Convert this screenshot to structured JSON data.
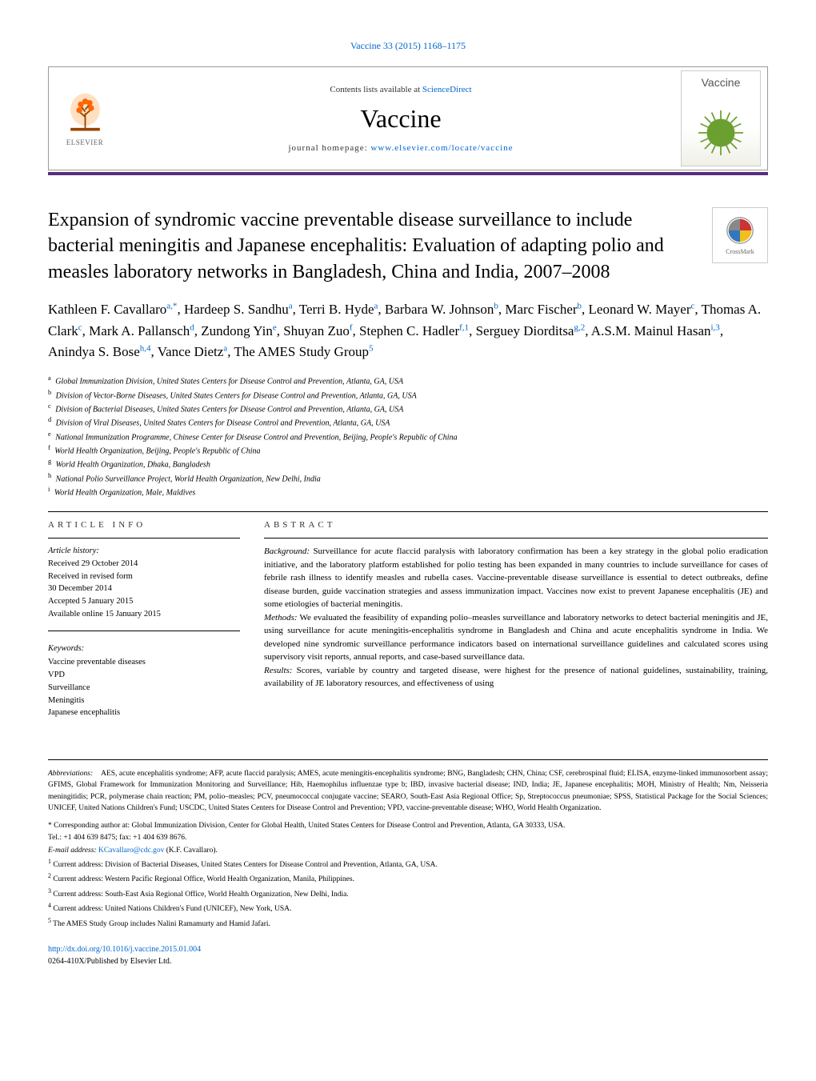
{
  "journal_ref": "Vaccine 33 (2015) 1168–1175",
  "header": {
    "contents_prefix": "Contents lists available at ",
    "contents_link": "ScienceDirect",
    "journal_name": "Vaccine",
    "homepage_prefix": "journal homepage: ",
    "homepage_url": "www.elsevier.com/locate/vaccine",
    "elsevier_label": "ELSEVIER",
    "logo_label": "Vaccine"
  },
  "crossmark_label": "CrossMark",
  "title": "Expansion of syndromic vaccine preventable disease surveillance to include bacterial meningitis and Japanese encephalitis: Evaluation of adapting polio and measles laboratory networks in Bangladesh, China and India, 2007–2008",
  "authors_html_parts": [
    {
      "name": "Kathleen F. Cavallaro",
      "sup": "a,*"
    },
    {
      "name": "Hardeep S. Sandhu",
      "sup": "a"
    },
    {
      "name": "Terri B. Hyde",
      "sup": "a"
    },
    {
      "name": "Barbara W. Johnson",
      "sup": "b"
    },
    {
      "name": "Marc Fischer",
      "sup": "b"
    },
    {
      "name": "Leonard W. Mayer",
      "sup": "c"
    },
    {
      "name": "Thomas A. Clark",
      "sup": "c"
    },
    {
      "name": "Mark A. Pallansch",
      "sup": "d"
    },
    {
      "name": "Zundong Yin",
      "sup": "e"
    },
    {
      "name": "Shuyan Zuo",
      "sup": "f"
    },
    {
      "name": "Stephen C. Hadler",
      "sup": "f,1"
    },
    {
      "name": "Serguey Diorditsa",
      "sup": "g,2"
    },
    {
      "name": "A.S.M. Mainul Hasan",
      "sup": "i,3"
    },
    {
      "name": "Anindya S. Bose",
      "sup": "h,4"
    },
    {
      "name": "Vance Dietz",
      "sup": "a"
    },
    {
      "name": "The AMES Study Group",
      "sup": "5"
    }
  ],
  "affiliations": [
    {
      "sup": "a",
      "text": "Global Immunization Division, United States Centers for Disease Control and Prevention, Atlanta, GA, USA"
    },
    {
      "sup": "b",
      "text": "Division of Vector-Borne Diseases, United States Centers for Disease Control and Prevention, Atlanta, GA, USA"
    },
    {
      "sup": "c",
      "text": "Division of Bacterial Diseases, United States Centers for Disease Control and Prevention, Atlanta, GA, USA"
    },
    {
      "sup": "d",
      "text": "Division of Viral Diseases, United States Centers for Disease Control and Prevention, Atlanta, GA, USA"
    },
    {
      "sup": "e",
      "text": "National Immunization Programme, Chinese Center for Disease Control and Prevention, Beijing, People's Republic of China"
    },
    {
      "sup": "f",
      "text": "World Health Organization, Beijing, People's Republic of China"
    },
    {
      "sup": "g",
      "text": "World Health Organization, Dhaka, Bangladesh"
    },
    {
      "sup": "h",
      "text": "National Polio Surveillance Project, World Health Organization, New Delhi, India"
    },
    {
      "sup": "i",
      "text": "World Health Organization, Male, Maldives"
    }
  ],
  "article_info": {
    "heading": "article info",
    "history_label": "Article history:",
    "history_lines": [
      "Received 29 October 2014",
      "Received in revised form",
      "30 December 2014",
      "Accepted 5 January 2015",
      "Available online 15 January 2015"
    ],
    "keywords_label": "Keywords:",
    "keywords": [
      "Vaccine preventable diseases",
      "VPD",
      "Surveillance",
      "Meningitis",
      "Japanese encephalitis"
    ]
  },
  "abstract": {
    "heading": "abstract",
    "paragraphs": [
      {
        "label": "Background:",
        "text": "Surveillance for acute flaccid paralysis with laboratory confirmation has been a key strategy in the global polio eradication initiative, and the laboratory platform established for polio testing has been expanded in many countries to include surveillance for cases of febrile rash illness to identify measles and rubella cases. Vaccine-preventable disease surveillance is essential to detect outbreaks, define disease burden, guide vaccination strategies and assess immunization impact. Vaccines now exist to prevent Japanese encephalitis (JE) and some etiologies of bacterial meningitis."
      },
      {
        "label": "Methods:",
        "text": "We evaluated the feasibility of expanding polio–measles surveillance and laboratory networks to detect bacterial meningitis and JE, using surveillance for acute meningitis-encephalitis syndrome in Bangladesh and China and acute encephalitis syndrome in India. We developed nine syndromic surveillance performance indicators based on international surveillance guidelines and calculated scores using supervisory visit reports, annual reports, and case-based surveillance data."
      },
      {
        "label": "Results:",
        "text": "Scores, variable by country and targeted disease, were highest for the presence of national guidelines, sustainability, training, availability of JE laboratory resources, and effectiveness of using"
      }
    ]
  },
  "abbreviations": {
    "label": "Abbreviations:",
    "text": "AES, acute encephalitis syndrome; AFP, acute flaccid paralysis; AMES, acute meningitis-encephalitis syndrome; BNG, Bangladesh; CHN, China; CSF, cerebrospinal fluid; ELISA, enzyme-linked immunosorbent assay; GFIMS, Global Framework for Immunization Monitoring and Surveillance; Hib, Haemophilus influenzae type b; IBD, invasive bacterial disease; IND, India; JE, Japanese encephalitis; MOH, Ministry of Health; Nm, Neisseria meningitidis; PCR, polymerase chain reaction; PM, polio–measles; PCV, pneumococcal conjugate vaccine; SEARO, South-East Asia Regional Office; Sp, Streptococcus pneumoniae; SPSS, Statistical Package for the Social Sciences; UNICEF, United Nations Children's Fund; USCDC, United States Centers for Disease Control and Prevention; VPD, vaccine-preventable disease; WHO, World Health Organization."
  },
  "corresponding": {
    "star_text": "Corresponding author at: Global Immunization Division, Center for Global Health, United States Centers for Disease Control and Prevention, Atlanta, GA 30333, USA.",
    "tel": "Tel.: +1 404 639 8475; fax: +1 404 639 8676.",
    "email_label": "E-mail address:",
    "email": "KCavallaro@cdc.gov",
    "email_suffix": "(K.F. Cavallaro)."
  },
  "footnotes": [
    {
      "sup": "1",
      "text": "Current address: Division of Bacterial Diseases, United States Centers for Disease Control and Prevention, Atlanta, GA, USA."
    },
    {
      "sup": "2",
      "text": "Current address: Western Pacific Regional Office, World Health Organization, Manila, Philippines."
    },
    {
      "sup": "3",
      "text": "Current address: South-East Asia Regional Office, World Health Organization, New Delhi, India."
    },
    {
      "sup": "4",
      "text": "Current address: United Nations Children's Fund (UNICEF), New York, USA."
    },
    {
      "sup": "5",
      "text": "The AMES Study Group includes Nalini Ramamurty and Hamid Jafari."
    }
  ],
  "doi": "http://dx.doi.org/10.1016/j.vaccine.2015.01.004",
  "copyright": "0264-410X/Published by Elsevier Ltd.",
  "colors": {
    "link": "#0066cc",
    "bar": "#5a2d7a",
    "elsevier_orange": "#ff6600",
    "vaccine_green": "#6ba030"
  }
}
